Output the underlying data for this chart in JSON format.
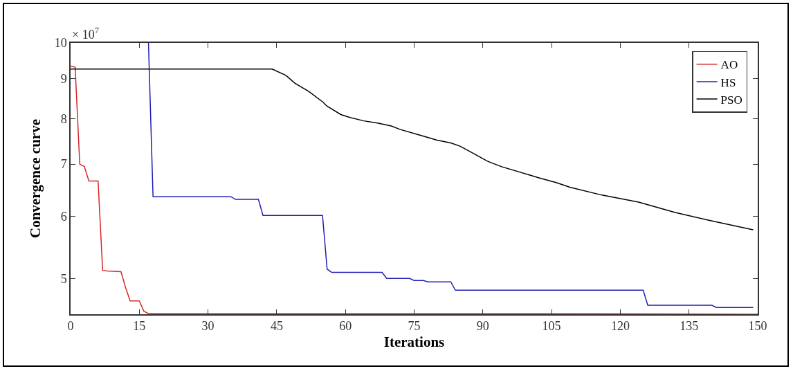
{
  "chart_data": {
    "type": "line",
    "xlabel": "Iterations",
    "ylabel": "Convergence curve",
    "annotations": [
      "× 10$^{7}$"
    ],
    "xlim": [
      0,
      150
    ],
    "xticks": [
      0,
      15,
      30,
      45,
      60,
      75,
      90,
      105,
      120,
      135,
      150
    ],
    "ylim": [
      4.5,
      10
    ],
    "yticks": [
      5,
      6,
      7,
      8,
      9,
      10
    ],
    "log": true,
    "grid": false,
    "legend": "top right",
    "series": [
      {
        "name": "AO",
        "color": "#d62728",
        "x": [
          0,
          1,
          2,
          3,
          4,
          6,
          7,
          8,
          11,
          12,
          13,
          15,
          16,
          17,
          100,
          150
        ],
        "values": [
          9.34,
          9.31,
          7.0,
          6.95,
          6.66,
          6.66,
          5.12,
          5.11,
          5.1,
          4.87,
          4.68,
          4.68,
          4.54,
          4.51,
          4.51,
          4.5
        ]
      },
      {
        "name": "HS",
        "color": "#1f1fb4",
        "x": [
          17,
          18,
          35,
          36,
          41,
          42,
          55,
          56,
          57,
          68,
          69,
          74,
          75,
          77,
          78,
          83,
          84,
          125,
          126,
          140,
          141,
          149
        ],
        "values": [
          10,
          6.36,
          6.36,
          6.31,
          6.31,
          6.02,
          6.02,
          5.14,
          5.09,
          5.09,
          5.0,
          5.0,
          4.97,
          4.97,
          4.95,
          4.95,
          4.83,
          4.83,
          4.62,
          4.62,
          4.59,
          4.59
        ]
      },
      {
        "name": "PSO",
        "color": "#000000",
        "x": [
          0,
          44,
          47,
          49,
          52,
          55,
          56,
          59,
          61,
          64,
          67,
          70,
          72,
          76,
          80,
          83,
          85,
          88,
          91,
          94,
          102,
          106,
          109,
          116,
          124,
          132,
          139,
          149
        ],
        "values": [
          9.26,
          9.26,
          9.09,
          8.88,
          8.67,
          8.41,
          8.3,
          8.1,
          8.03,
          7.95,
          7.9,
          7.83,
          7.75,
          7.63,
          7.51,
          7.45,
          7.38,
          7.22,
          7.06,
          6.95,
          6.73,
          6.63,
          6.54,
          6.39,
          6.26,
          6.07,
          5.94,
          5.77
        ]
      }
    ]
  }
}
